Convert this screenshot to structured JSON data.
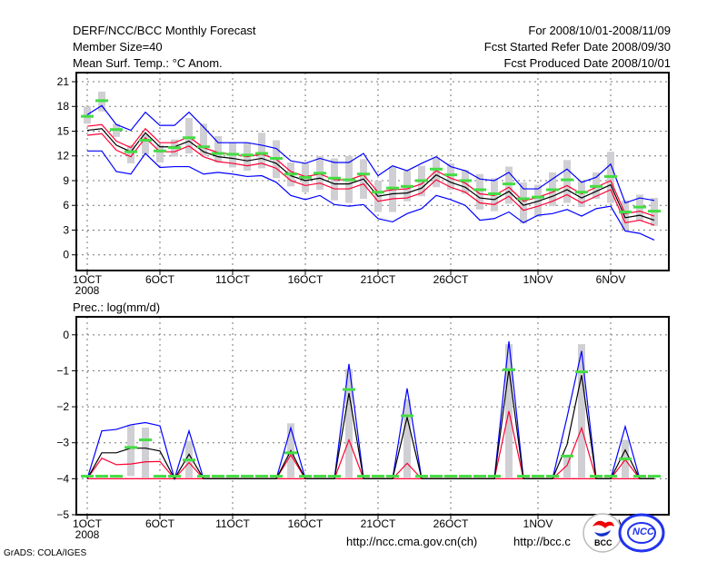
{
  "header": {
    "title": "DERF/NCC/BCC Monthly Forecast",
    "member_size": "Member Size=40",
    "variable": "Mean Surf. Temp.: °C Anom.",
    "period": "For 2008/10/01-2008/11/09",
    "started": "Fcst Started Refer Date 2008/09/30",
    "produced": "Fcst Produced Date 2008/10/01"
  },
  "footer": {
    "grads": "GrADS: COLA/IGES",
    "url_ncc": "http://ncc.cma.gov.cn(ch)",
    "url_bcc": "http://bcc.c",
    "logo_bcc": "BCC",
    "logo_ncc": "NCC"
  },
  "colors": {
    "max_min": "#0000ff",
    "spread": "#ff0033",
    "mean": "#000000",
    "obs": "#44dd44",
    "bar": "#d0d0d4"
  },
  "chart_data": [
    {
      "type": "line",
      "title": "Mean Surf. Temp.: °C Anom.",
      "ylim": [
        -1.9,
        22.1
      ],
      "yticks": [
        0,
        3,
        6,
        9,
        12,
        15,
        18,
        21
      ],
      "xtick_days": [
        0,
        5,
        10,
        15,
        20,
        25,
        31,
        36
      ],
      "xtick_labels": [
        "1OCT",
        "6OCT",
        "11OCT",
        "16OCT",
        "21OCT",
        "26OCT",
        "1NOV",
        "6NOV"
      ],
      "year_label": "2008",
      "grid": true,
      "days": 40,
      "series": [
        {
          "name": "max",
          "color": "max_min",
          "values": [
            17.0,
            18.1,
            15.8,
            15.1,
            17.3,
            15.7,
            15.7,
            17.3,
            15.5,
            13.6,
            13.6,
            13.6,
            13.3,
            12.9,
            11.4,
            11.1,
            11.7,
            11.2,
            11.2,
            12.3,
            9.6,
            10.8,
            10.2,
            11.1,
            11.9,
            10.7,
            10.2,
            9.2,
            9.0,
            10.0,
            8.0,
            8.0,
            9.2,
            10.4,
            8.8,
            9.4,
            11.0,
            6.3,
            6.9,
            6.6
          ]
        },
        {
          "name": "min",
          "color": "max_min",
          "values": [
            12.6,
            12.6,
            10.1,
            9.8,
            12.3,
            10.6,
            10.7,
            10.7,
            9.8,
            10.0,
            9.8,
            9.5,
            9.6,
            8.8,
            7.2,
            6.7,
            7.2,
            6.1,
            5.9,
            6.1,
            4.4,
            4.0,
            5.0,
            5.6,
            7.2,
            6.7,
            6.0,
            4.2,
            4.4,
            5.2,
            3.9,
            4.8,
            5.0,
            5.5,
            4.7,
            5.6,
            5.9,
            2.9,
            2.6,
            1.8
          ]
        },
        {
          "name": "upper",
          "color": "spread",
          "values": [
            15.6,
            15.8,
            13.8,
            13.0,
            15.3,
            13.6,
            13.6,
            14.3,
            13.0,
            12.4,
            12.2,
            11.9,
            12.2,
            11.6,
            10.1,
            9.5,
            9.8,
            9.1,
            9.1,
            9.7,
            7.6,
            7.9,
            8.0,
            8.6,
            10.2,
            9.3,
            8.7,
            7.4,
            7.2,
            8.2,
            6.5,
            7.0,
            7.6,
            8.4,
            7.4,
            8.2,
            9.0,
            5.0,
            5.3,
            4.7
          ]
        },
        {
          "name": "lower",
          "color": "spread",
          "values": [
            14.5,
            14.7,
            12.7,
            11.9,
            14.2,
            12.5,
            12.5,
            13.2,
            11.9,
            11.3,
            11.1,
            10.8,
            11.1,
            10.5,
            9.0,
            8.4,
            8.7,
            8.0,
            8.0,
            8.6,
            6.5,
            6.8,
            6.9,
            7.5,
            9.1,
            8.2,
            7.6,
            6.3,
            6.1,
            7.1,
            5.4,
            5.9,
            6.5,
            7.3,
            6.3,
            7.1,
            7.9,
            3.9,
            4.2,
            3.6
          ]
        },
        {
          "name": "mean",
          "color": "mean",
          "values": [
            15.1,
            15.3,
            13.3,
            12.5,
            14.8,
            13.1,
            13.1,
            13.8,
            12.5,
            11.9,
            11.7,
            11.4,
            11.7,
            11.1,
            9.6,
            9.0,
            9.3,
            8.6,
            8.6,
            9.2,
            7.1,
            7.4,
            7.5,
            8.1,
            9.7,
            8.8,
            8.2,
            6.9,
            6.7,
            7.7,
            6.0,
            6.5,
            7.1,
            7.9,
            6.9,
            7.7,
            8.5,
            4.5,
            4.8,
            4.2
          ]
        }
      ],
      "marks": [
        16.8,
        18.7,
        15.2,
        12.5,
        13.9,
        12.6,
        13.0,
        14.2,
        13.1,
        12.3,
        12.2,
        12.1,
        12.3,
        11.7,
        9.8,
        9.4,
        9.9,
        9.3,
        9.1,
        9.8,
        7.6,
        8.1,
        8.3,
        9.0,
        10.4,
        9.7,
        9.0,
        7.9,
        7.4,
        8.6,
        6.8,
        7.0,
        7.9,
        9.1,
        7.6,
        8.3,
        9.5,
        5.2,
        5.8,
        5.3
      ],
      "bars_low": [
        15.9,
        17.4,
        14.3,
        11.1,
        12.2,
        11.2,
        11.9,
        12.3,
        12.0,
        11.2,
        10.6,
        10.2,
        10.5,
        9.3,
        8.3,
        7.6,
        7.9,
        6.6,
        6.3,
        6.8,
        5.2,
        5.2,
        6.5,
        7.1,
        8.2,
        7.9,
        7.4,
        5.5,
        5.3,
        6.2,
        3.8,
        4.6,
        5.9,
        6.3,
        5.8,
        6.8,
        6.3,
        3.0,
        4.1,
        3.5
      ],
      "bars_high": [
        18.0,
        19.8,
        15.9,
        13.3,
        14.6,
        13.3,
        14.0,
        16.6,
        15.9,
        14.4,
        13.6,
        13.6,
        14.8,
        13.9,
        11.2,
        11.1,
        12.0,
        11.7,
        12.0,
        11.6,
        9.0,
        10.7,
        10.2,
        10.8,
        11.8,
        11.1,
        10.3,
        9.8,
        9.3,
        10.7,
        8.8,
        8.5,
        10.0,
        11.5,
        9.0,
        10.0,
        12.5,
        6.6,
        7.3,
        6.9
      ]
    },
    {
      "type": "line",
      "title": "Prec.: log(mm/d)",
      "ylim": [
        -5,
        0.5
      ],
      "yticks": [
        -5,
        -4,
        -3,
        -2,
        -1,
        0
      ],
      "xtick_days": [
        0,
        5,
        10,
        15,
        20,
        25,
        31,
        36
      ],
      "xtick_labels": [
        "1OCT",
        "6OCT",
        "11OCT",
        "16OCT",
        "21OCT",
        "26OCT",
        "1NOV",
        "6NOV"
      ],
      "year_label": "2008",
      "grid": true,
      "days": 40,
      "series": [
        {
          "name": "max",
          "color": "max_min",
          "values": [
            -4,
            -2.67,
            -2.63,
            -2.5,
            -2.44,
            -2.53,
            -4,
            -2.67,
            -4,
            -4,
            -4,
            -4,
            -4,
            -4,
            -2.59,
            -4,
            -4,
            -4,
            -0.81,
            -4,
            -4,
            -4,
            -1.49,
            -4,
            -4,
            -4,
            -4,
            -4,
            -4,
            -0.18,
            -4,
            -4,
            -4,
            -2.29,
            -0.45,
            -4,
            -4,
            -2.55,
            -4,
            -4
          ]
        },
        {
          "name": "lower",
          "color": "spread",
          "values": [
            -4,
            -4,
            -4,
            -4,
            -4,
            -4,
            -4,
            -4,
            -4,
            -4,
            -4,
            -4,
            -4,
            -4,
            -4,
            -4,
            -4,
            -4,
            -4,
            -4,
            -4,
            -4,
            -4,
            -4,
            -4,
            -4,
            -4,
            -4,
            -4,
            -4,
            -4,
            -4,
            -4,
            -4,
            -4,
            -4,
            -4,
            -4,
            -4,
            -4
          ]
        },
        {
          "name": "upper",
          "color": "spread",
          "values": [
            -4,
            -3.43,
            -3.61,
            -3.59,
            -3.53,
            -3.52,
            -4,
            -3.55,
            -4,
            -4,
            -4,
            -4,
            -4,
            -4,
            -3.34,
            -4,
            -4,
            -4,
            -2.92,
            -4,
            -4,
            -4,
            -3.57,
            -4,
            -4,
            -4,
            -4,
            -4,
            -4,
            -2.12,
            -4,
            -4,
            -4,
            -3.63,
            -2.59,
            -4,
            -4,
            -3.47,
            -4,
            -4
          ]
        },
        {
          "name": "mean",
          "color": "mean",
          "values": [
            -4,
            -3.28,
            -3.28,
            -3.15,
            -3.15,
            -3.23,
            -4,
            -3.32,
            -4,
            -4,
            -4,
            -4,
            -4,
            -4,
            -3.22,
            -4,
            -4,
            -4,
            -1.62,
            -4,
            -4,
            -4,
            -2.29,
            -4,
            -4,
            -4,
            -4,
            -4,
            -4,
            -0.95,
            -4,
            -4,
            -4,
            -3.05,
            -1.12,
            -4,
            -4,
            -3.2,
            -4,
            -4
          ]
        }
      ],
      "marks": [
        -3.93,
        -3.93,
        -3.93,
        -3.13,
        -2.92,
        -3.93,
        -3.93,
        -3.48,
        -3.93,
        -3.93,
        -3.93,
        -3.93,
        -3.93,
        -3.93,
        -3.28,
        -3.93,
        -3.93,
        -3.93,
        -1.52,
        -3.93,
        -3.93,
        -3.93,
        -2.25,
        -3.93,
        -3.93,
        -3.93,
        -3.93,
        -3.93,
        -3.93,
        -0.97,
        -3.93,
        -3.93,
        -3.93,
        -3.37,
        -1.03,
        -3.93,
        -3.93,
        -3.45,
        -3.93,
        -3.93
      ],
      "bars_low": [
        null,
        null,
        null,
        -3.93,
        -3.97,
        null,
        null,
        -3.97,
        null,
        null,
        null,
        null,
        null,
        null,
        -3.97,
        null,
        null,
        null,
        -3.97,
        null,
        null,
        null,
        -3.97,
        null,
        null,
        null,
        null,
        null,
        null,
        -3.97,
        null,
        null,
        null,
        -3.97,
        -3.97,
        null,
        null,
        -3.97,
        null,
        null
      ],
      "bars_high": [
        null,
        null,
        null,
        -2.5,
        -2.58,
        null,
        null,
        -2.95,
        null,
        null,
        null,
        null,
        null,
        null,
        -2.46,
        null,
        null,
        null,
        -0.95,
        null,
        null,
        null,
        -1.79,
        null,
        null,
        null,
        null,
        null,
        null,
        -0.26,
        null,
        null,
        null,
        -3.35,
        -0.26,
        null,
        null,
        -2.92,
        null,
        null
      ]
    }
  ]
}
